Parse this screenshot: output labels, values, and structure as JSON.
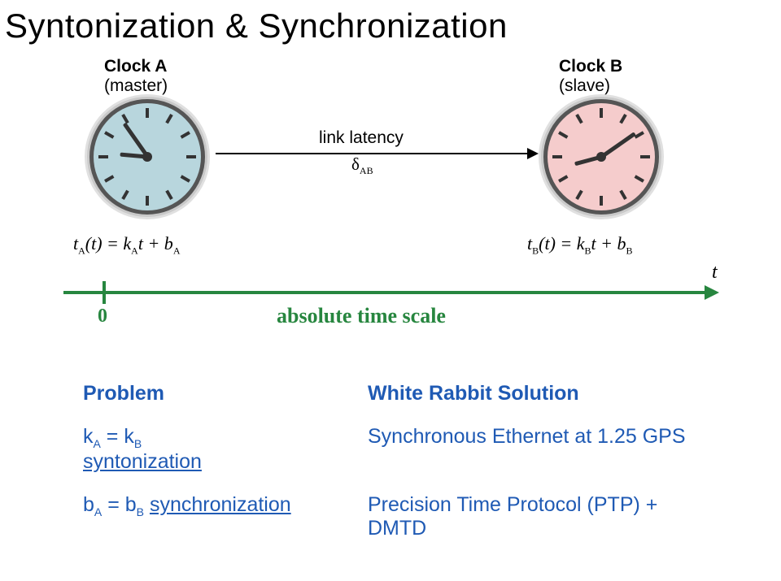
{
  "title": "Syntonization & Synchronization",
  "diagram": {
    "clockA": {
      "label": "Clock A",
      "role": "(master)",
      "face_color": "#b8d6dd",
      "hand_long_deg": -35,
      "hand_short_deg": -85
    },
    "clockB": {
      "label": "Clock B",
      "role": "(slave)",
      "face_color": "#f5cccc",
      "hand_long_deg": 55,
      "hand_short_deg": -105
    },
    "link_label": "link latency",
    "delta_label_html": "δ<sub>AB</sub>",
    "eqA_html": "t<sub>A</sub>(t) = k<sub>A</sub>t + b<sub>A</sub>",
    "eqB_html": "t<sub>B</sub>(t) = k<sub>B</sub>t + b<sub>B</sub>",
    "timescale": {
      "zero": "0",
      "label": "absolute time scale",
      "var": "t",
      "color": "#27863f"
    }
  },
  "table": {
    "text_color": "#1f5ab4",
    "header": {
      "left": "Problem",
      "right": "White Rabbit Solution"
    },
    "row1": {
      "left_html": "k<sub>A</sub> = k<sub>B</sub><br><span class=\"underline\">syntonization</span>",
      "right": "Synchronous Ethernet at 1.25 GPS"
    },
    "row2": {
      "left_html": "b<sub>A</sub> = b<sub>B</sub>  <span class=\"underline\">synchronization</span>",
      "right": "Precision Time Protocol (PTP) + DMTD"
    }
  }
}
